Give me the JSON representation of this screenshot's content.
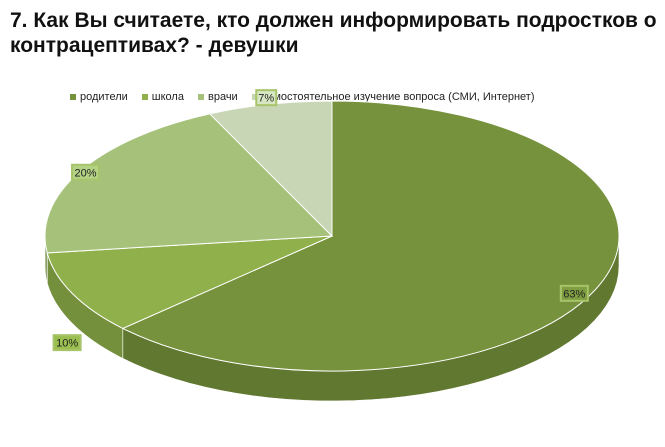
{
  "title": "7. Как Вы считаете, кто должен информировать подростков о контрацептивах? -  девушки",
  "chart_data": {
    "type": "pie",
    "title": "7. Как Вы считаете, кто должен информировать подростков о контрацептивах? -  девушки",
    "categories": [
      "родители",
      "школа",
      "врачи",
      "самостоятельное изучение вопроса (СМИ, Интернет)"
    ],
    "values": [
      63,
      10,
      20,
      7
    ],
    "data_labels": [
      "63%",
      "10%",
      "20%",
      "7%"
    ],
    "colors": [
      "#76923c",
      "#8fb04a",
      "#a6c27a",
      "#c8d6b5"
    ],
    "legend_position": "top",
    "style": "3d"
  }
}
